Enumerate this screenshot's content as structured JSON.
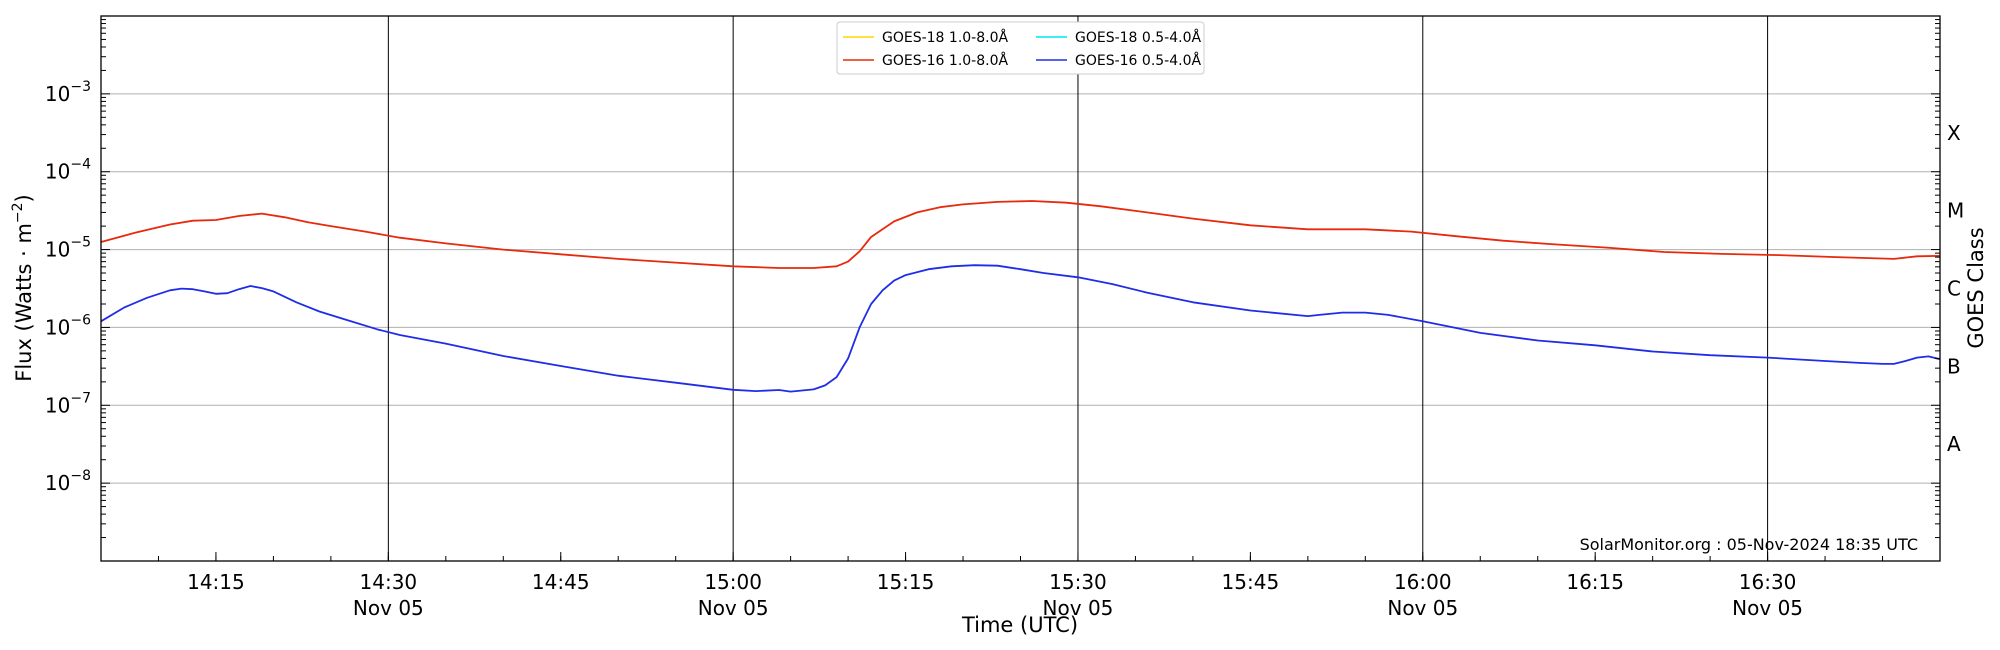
{
  "chart_data": {
    "type": "line",
    "title": "",
    "xlabel": "Time (UTC)",
    "ylabel_main": "Flux (Watts · m",
    "ylabel_exp": "−2",
    "ylabel_close": ")",
    "ylabel_right": "GOES Class",
    "yscale": "log",
    "ylim": [
      1e-09,
      0.01
    ],
    "xlim": [
      "14:05",
      "16:45"
    ],
    "grid": "horizontal at decades, vertical at 30-minute ticks",
    "legend_position": "top-center",
    "credit": "SolarMonitor.org : 05-Nov-2024 18:35 UTC",
    "y_ticks": [
      {
        "base": "10",
        "exp": "−3",
        "value": 0.001
      },
      {
        "base": "10",
        "exp": "−4",
        "value": 0.0001
      },
      {
        "base": "10",
        "exp": "−5",
        "value": 1e-05
      },
      {
        "base": "10",
        "exp": "−6",
        "value": 1e-06
      },
      {
        "base": "10",
        "exp": "−7",
        "value": 1e-07
      },
      {
        "base": "10",
        "exp": "−8",
        "value": 1e-08
      }
    ],
    "classes": [
      {
        "label": "X",
        "value": 0.0003162
      },
      {
        "label": "M",
        "value": 3.162e-05
      },
      {
        "label": "C",
        "value": 3.162e-06
      },
      {
        "label": "B",
        "value": 3.162e-07
      },
      {
        "label": "A",
        "value": 3.162e-08
      }
    ],
    "x_ticks": [
      {
        "time": "14:15",
        "label": "14:15",
        "sub": ""
      },
      {
        "time": "14:30",
        "label": "14:30",
        "sub": "Nov 05"
      },
      {
        "time": "14:45",
        "label": "14:45",
        "sub": ""
      },
      {
        "time": "15:00",
        "label": "15:00",
        "sub": "Nov 05"
      },
      {
        "time": "15:15",
        "label": "15:15",
        "sub": ""
      },
      {
        "time": "15:30",
        "label": "15:30",
        "sub": "Nov 05"
      },
      {
        "time": "15:45",
        "label": "15:45",
        "sub": ""
      },
      {
        "time": "16:00",
        "label": "16:00",
        "sub": "Nov 05"
      },
      {
        "time": "16:15",
        "label": "16:15",
        "sub": ""
      },
      {
        "time": "16:30",
        "label": "16:30",
        "sub": "Nov 05"
      }
    ],
    "vertical_lines": [
      "14:30",
      "15:00",
      "15:30",
      "16:00",
      "16:30"
    ],
    "series": [
      {
        "name": "GOES-18 1.0-8.0Å",
        "color": "#ffd700",
        "x": [],
        "y": []
      },
      {
        "name": "GOES-18 0.5-4.0Å",
        "color": "#00e5ee",
        "x": [],
        "y": []
      },
      {
        "name": "GOES-16 1.0-8.0Å",
        "color": "#e8290b",
        "x": [
          "14:05",
          "14:08",
          "14:11",
          "14:13",
          "14:15",
          "14:17",
          "14:19",
          "14:21",
          "14:23",
          "14:25",
          "14:28",
          "14:31",
          "14:35",
          "14:40",
          "14:45",
          "14:50",
          "14:55",
          "15:00",
          "15:04",
          "15:07",
          "15:09",
          "15:10",
          "15:11",
          "15:12",
          "15:14",
          "15:16",
          "15:18",
          "15:20",
          "15:23",
          "15:26",
          "15:29",
          "15:32",
          "15:36",
          "15:40",
          "15:45",
          "15:50",
          "15:55",
          "15:59",
          "16:03",
          "16:07",
          "16:11",
          "16:16",
          "16:21",
          "16:26",
          "16:31",
          "16:36",
          "16:41",
          "16:43",
          "16:45"
        ],
        "y": [
          1.25e-05,
          1.65e-05,
          2.1e-05,
          2.35e-05,
          2.4e-05,
          2.7e-05,
          2.9e-05,
          2.6e-05,
          2.25e-05,
          2e-05,
          1.7e-05,
          1.42e-05,
          1.2e-05,
          1e-05,
          8.7e-06,
          7.6e-06,
          6.8e-06,
          6.1e-06,
          5.8e-06,
          5.8e-06,
          6.1e-06,
          7e-06,
          9.5e-06,
          1.45e-05,
          2.3e-05,
          3e-05,
          3.5e-05,
          3.8e-05,
          4.1e-05,
          4.2e-05,
          4e-05,
          3.6e-05,
          3e-05,
          2.5e-05,
          2.05e-05,
          1.82e-05,
          1.82e-05,
          1.7e-05,
          1.48e-05,
          1.3e-05,
          1.18e-05,
          1.06e-05,
          9.3e-06,
          8.8e-06,
          8.5e-06,
          8e-06,
          7.6e-06,
          8.2e-06,
          8.3e-06
        ]
      },
      {
        "name": "GOES-16 0.5-4.0Å",
        "color": "#1f2de8",
        "x": [
          "14:05",
          "14:07",
          "14:09",
          "14:11",
          "14:12",
          "14:13",
          "14:14",
          "14:15",
          "14:16",
          "14:17",
          "14:18",
          "14:19",
          "14:20",
          "14:22",
          "14:24",
          "14:26",
          "14:29",
          "14:31",
          "14:35",
          "14:40",
          "14:45",
          "14:50",
          "14:55",
          "15:00",
          "15:02",
          "15:04",
          "15:05",
          "15:07",
          "15:08",
          "15:09",
          "15:10",
          "15:11",
          "15:12",
          "15:13",
          "15:14",
          "15:15",
          "15:17",
          "15:19",
          "15:21",
          "15:23",
          "15:25",
          "15:27",
          "15:30",
          "15:33",
          "15:36",
          "15:40",
          "15:45",
          "15:50",
          "15:51",
          "15:53",
          "15:55",
          "15:57",
          "16:00",
          "16:05",
          "16:10",
          "16:15",
          "16:20",
          "16:25",
          "16:30",
          "16:35",
          "16:38",
          "16:40",
          "16:41",
          "16:42",
          "16:43",
          "16:44",
          "16:45"
        ],
        "y": [
          1.2e-06,
          1.8e-06,
          2.4e-06,
          3e-06,
          3.15e-06,
          3.1e-06,
          2.9e-06,
          2.7e-06,
          2.75e-06,
          3.1e-06,
          3.4e-06,
          3.2e-06,
          2.9e-06,
          2.1e-06,
          1.6e-06,
          1.3e-06,
          9.5e-07,
          8e-07,
          6.2e-07,
          4.3e-07,
          3.2e-07,
          2.4e-07,
          1.95e-07,
          1.58e-07,
          1.52e-07,
          1.57e-07,
          1.5e-07,
          1.6e-07,
          1.8e-07,
          2.3e-07,
          4e-07,
          1e-06,
          2e-06,
          3e-06,
          4e-06,
          4.7e-06,
          5.6e-06,
          6.1e-06,
          6.3e-06,
          6.2e-06,
          5.6e-06,
          5e-06,
          4.4e-06,
          3.6e-06,
          2.8e-06,
          2.1e-06,
          1.65e-06,
          1.4e-06,
          1.45e-06,
          1.55e-06,
          1.55e-06,
          1.45e-06,
          1.2e-06,
          8.5e-07,
          6.8e-07,
          5.9e-07,
          4.9e-07,
          4.4e-07,
          4.1e-07,
          3.7e-07,
          3.5e-07,
          3.4e-07,
          3.4e-07,
          3.7e-07,
          4.1e-07,
          4.25e-07,
          3.9e-07
        ]
      }
    ]
  }
}
